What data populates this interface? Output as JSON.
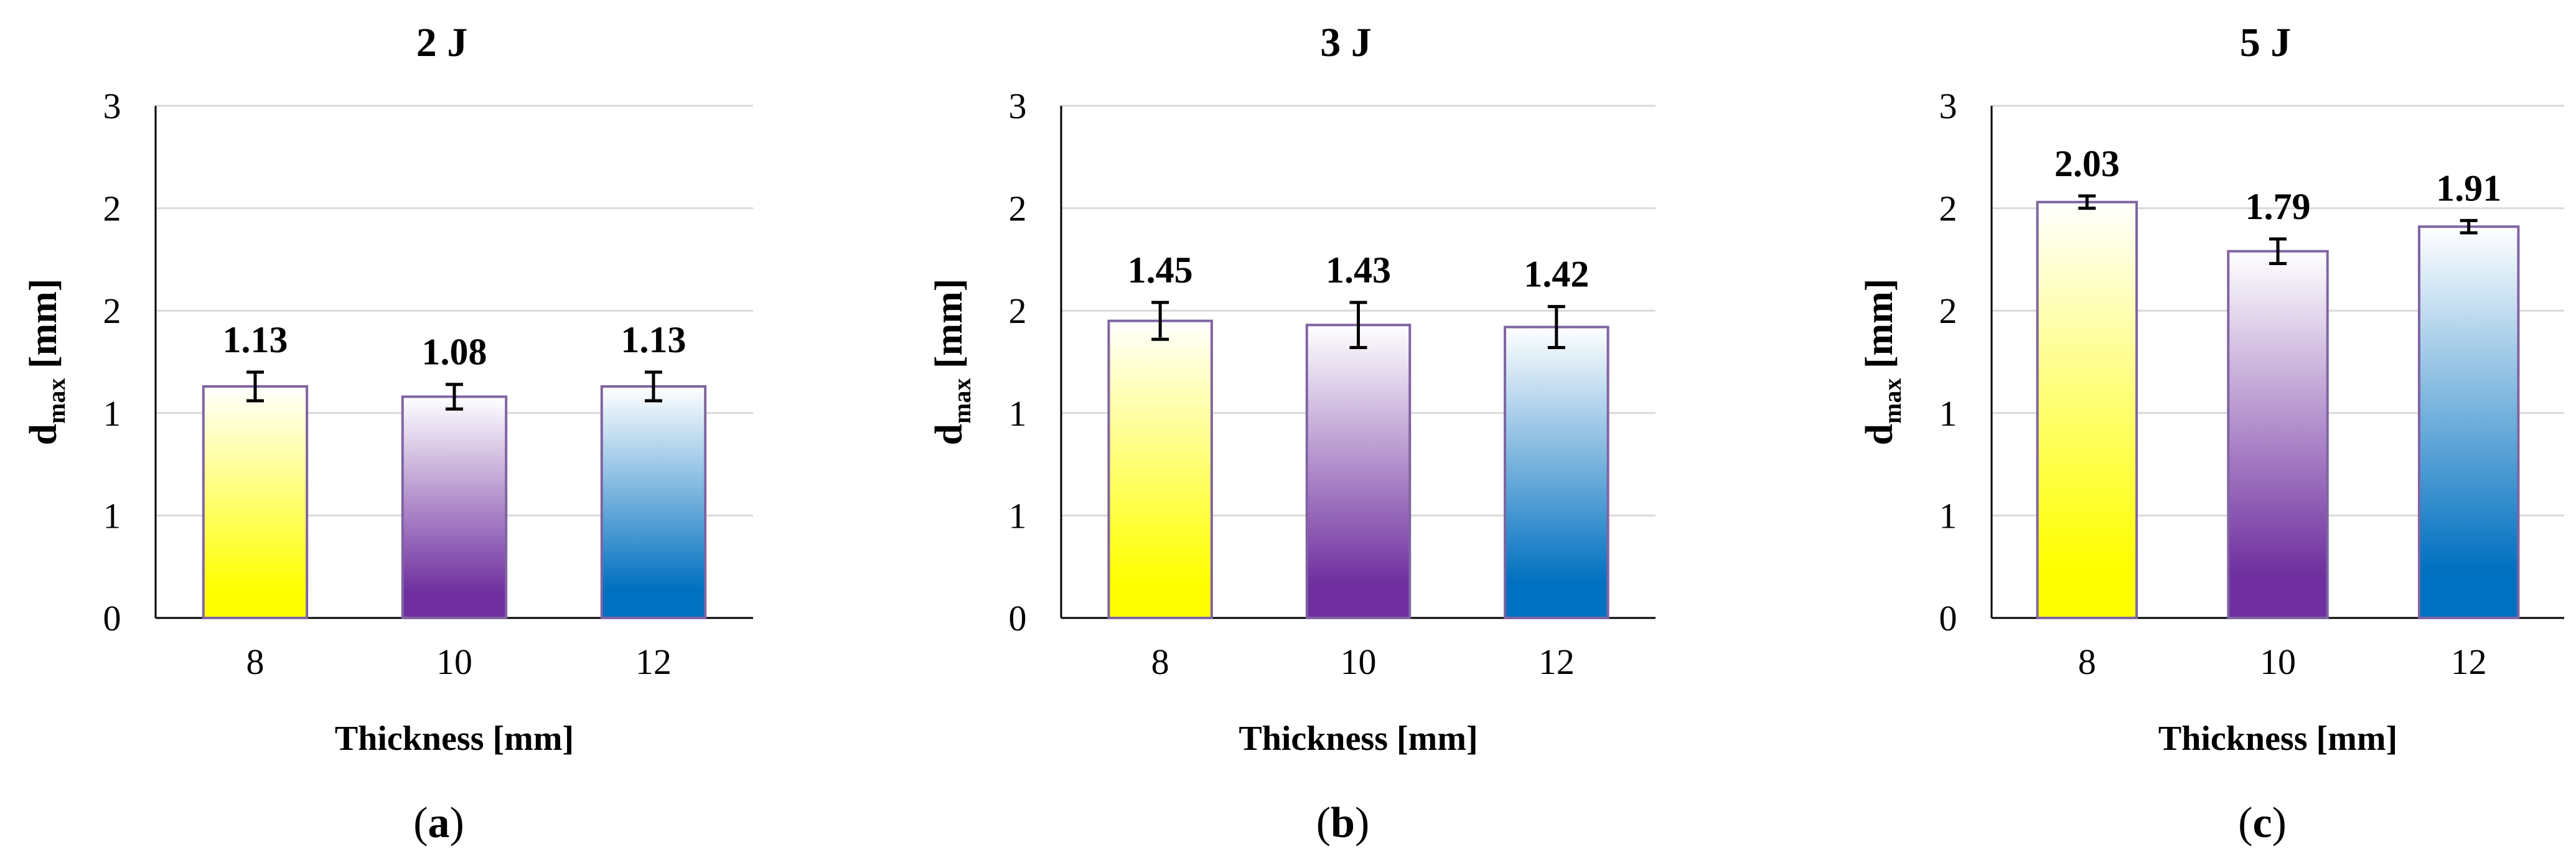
{
  "chart_data": [
    {
      "type": "bar",
      "panel": "a",
      "title": "2 J",
      "xlabel": "Thickness [mm]",
      "ylabel_main": "d",
      "ylabel_sub": "max",
      "ylabel_unit": " [mm]",
      "categories": [
        "8",
        "10",
        "12"
      ],
      "values": [
        1.13,
        1.08,
        1.13
      ],
      "data_labels": [
        "1.13",
        "1.08",
        "1.13"
      ],
      "errors": [
        0.07,
        0.06,
        0.07
      ],
      "ylim": [
        0,
        2.5
      ],
      "yticks": [
        0,
        0.5,
        1,
        1.5,
        2,
        2.5
      ],
      "ytick_labels": [
        "0",
        "1",
        "1",
        "2",
        "2",
        "3"
      ],
      "grid": true,
      "caption": "a"
    },
    {
      "type": "bar",
      "panel": "b",
      "title": "3 J",
      "xlabel": "Thickness [mm]",
      "ylabel_main": "d",
      "ylabel_sub": "max",
      "ylabel_unit": " [mm]",
      "categories": [
        "8",
        "10",
        "12"
      ],
      "values": [
        1.45,
        1.43,
        1.42
      ],
      "data_labels": [
        "1.45",
        "1.43",
        "1.42"
      ],
      "errors": [
        0.09,
        0.11,
        0.1
      ],
      "ylim": [
        0,
        2.5
      ],
      "yticks": [
        0,
        0.5,
        1,
        1.5,
        2,
        2.5
      ],
      "ytick_labels": [
        "0",
        "1",
        "1",
        "2",
        "2",
        "3"
      ],
      "grid": true,
      "caption": "b"
    },
    {
      "type": "bar",
      "panel": "c",
      "title": "5 J",
      "xlabel": "Thickness [mm]",
      "ylabel_main": "d",
      "ylabel_sub": "max",
      "ylabel_unit": " [mm]",
      "categories": [
        "8",
        "10",
        "12"
      ],
      "values": [
        2.03,
        1.79,
        1.91
      ],
      "data_labels": [
        "2.03",
        "1.79",
        "1.91"
      ],
      "errors": [
        0.03,
        0.06,
        0.03
      ],
      "ylim": [
        0,
        2.5
      ],
      "yticks": [
        0,
        0.5,
        1,
        1.5,
        2,
        2.5
      ],
      "ytick_labels": [
        "0",
        "1",
        "1",
        "2",
        "2",
        "3"
      ],
      "grid": true,
      "caption": "c"
    }
  ],
  "colors": {
    "gradient_bottoms": [
      "#ffff00",
      "#7030a0",
      "#0070c0"
    ],
    "bar_top": "#ffffff",
    "bar_border": "#8064a2",
    "grid": "#d9d9d9",
    "axis": "#000000"
  }
}
